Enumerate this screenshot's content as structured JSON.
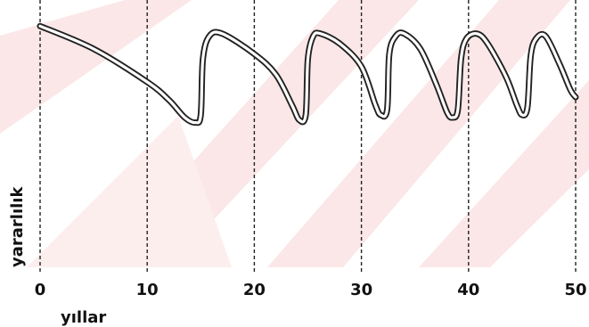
{
  "chart_data": {
    "type": "line",
    "title": "",
    "xlabel": "yıllar",
    "ylabel": "yararlılık",
    "xlim": [
      0,
      50
    ],
    "ylim": [
      0,
      1
    ],
    "xticks": [
      "0",
      "10",
      "20",
      "30",
      "40",
      "50"
    ],
    "grid_vertical": [
      0,
      10,
      20,
      30,
      40,
      50
    ],
    "line_style": "double-outline",
    "colors": {
      "line": "#222222",
      "grid": "#222222",
      "watermark": "#f6d6d6"
    },
    "series": [
      {
        "values": [
          [
            0,
            0.95
          ],
          [
            5,
            0.86
          ],
          [
            10,
            0.73
          ],
          [
            12,
            0.66
          ],
          [
            13.5,
            0.59
          ],
          [
            14.5,
            0.57
          ],
          [
            15,
            0.6
          ],
          [
            15.2,
            0.82
          ],
          [
            15.8,
            0.91
          ],
          [
            17,
            0.92
          ],
          [
            20,
            0.84
          ],
          [
            22,
            0.76
          ],
          [
            23.5,
            0.64
          ],
          [
            24.2,
            0.58
          ],
          [
            24.8,
            0.6
          ],
          [
            25,
            0.82
          ],
          [
            25.5,
            0.91
          ],
          [
            26.2,
            0.92
          ],
          [
            28,
            0.88
          ],
          [
            30,
            0.79
          ],
          [
            31.3,
            0.64
          ],
          [
            31.8,
            0.6
          ],
          [
            32.4,
            0.62
          ],
          [
            32.6,
            0.84
          ],
          [
            33.2,
            0.91
          ],
          [
            34,
            0.92
          ],
          [
            35.5,
            0.86
          ],
          [
            37,
            0.72
          ],
          [
            38,
            0.61
          ],
          [
            38.5,
            0.59
          ],
          [
            39,
            0.62
          ],
          [
            39.3,
            0.82
          ],
          [
            39.8,
            0.9
          ],
          [
            40.8,
            0.92
          ],
          [
            41.8,
            0.88
          ],
          [
            43.5,
            0.75
          ],
          [
            44.5,
            0.64
          ],
          [
            45,
            0.6
          ],
          [
            45.5,
            0.63
          ],
          [
            45.8,
            0.83
          ],
          [
            46.3,
            0.9
          ],
          [
            47.2,
            0.91
          ],
          [
            48.5,
            0.8
          ],
          [
            49.5,
            0.7
          ],
          [
            50,
            0.67
          ]
        ]
      }
    ]
  }
}
